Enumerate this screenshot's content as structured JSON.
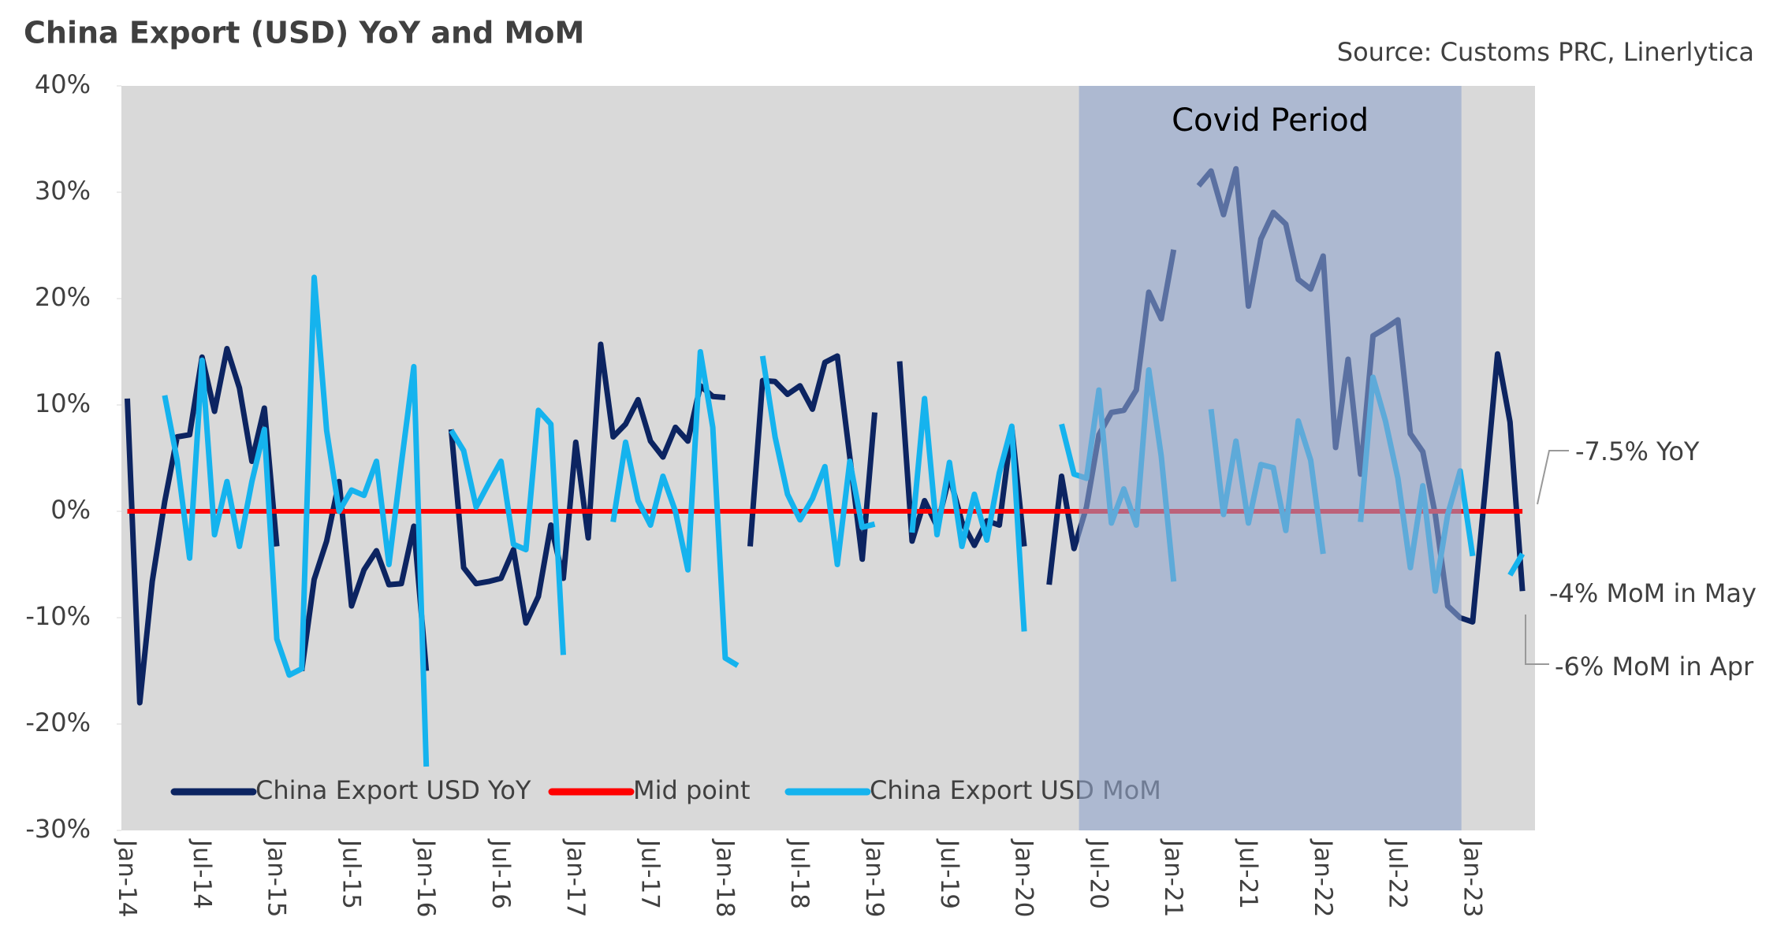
{
  "chart_data": {
    "type": "line",
    "title": "China Export (USD) YoY and MoM",
    "subtitle": "Source: Customs PRC, Linerlytica",
    "categories": [
      "Jan-14",
      null,
      null,
      null,
      null,
      null,
      "Jul-14",
      null,
      null,
      null,
      null,
      null,
      "Jan-15",
      null,
      null,
      null,
      null,
      null,
      "Jul-15",
      null,
      null,
      null,
      null,
      null,
      "Jan-16",
      null,
      null,
      null,
      null,
      null,
      "Jul-16",
      null,
      null,
      null,
      null,
      null,
      "Jan-17",
      null,
      null,
      null,
      null,
      null,
      "Jul-17",
      null,
      null,
      null,
      null,
      null,
      "Jan-18",
      null,
      null,
      null,
      null,
      null,
      "Jul-18",
      null,
      null,
      null,
      null,
      null,
      "Jan-19",
      null,
      null,
      null,
      null,
      null,
      "Jul-19",
      null,
      null,
      null,
      null,
      null,
      "Jan-20",
      null,
      null,
      null,
      null,
      null,
      "Jul-20",
      null,
      null,
      null,
      null,
      null,
      "Jan-21",
      null,
      null,
      null,
      null,
      null,
      "Jul-21",
      null,
      null,
      null,
      null,
      null,
      "Jan-22",
      null,
      null,
      null,
      null,
      null,
      "Jul-22",
      null,
      null,
      null,
      null,
      null,
      "Jan-23",
      null,
      null,
      null,
      null
    ],
    "series": [
      {
        "name": "China Export USD YoY",
        "color": "#0c2461",
        "values": [
          10.6,
          -18,
          -6.6,
          0.9,
          7,
          7.2,
          14.5,
          9.4,
          15.3,
          11.6,
          4.7,
          9.7,
          -3.3,
          null,
          -15,
          -6.4,
          -2.8,
          2.8,
          -8.9,
          -5.5,
          -3.7,
          -6.9,
          -6.8,
          -1.4,
          -15,
          null,
          7.7,
          -5.3,
          -6.8,
          -6.6,
          -6.3,
          -3.6,
          -10.5,
          -8,
          -1.3,
          -6.3,
          6.5,
          -2.5,
          15.7,
          7,
          8.2,
          10.5,
          6.6,
          5.1,
          7.9,
          6.6,
          11.8,
          10.8,
          10.7,
          null,
          -3.3,
          12.3,
          12.2,
          11,
          11.8,
          9.6,
          14,
          14.6,
          5.1,
          -4.5,
          9.3,
          null,
          14.1,
          -2.8,
          1,
          -1.4,
          3.3,
          -1,
          -3.2,
          -0.9,
          -1.3,
          7.9,
          -3.3,
          null,
          -6.9,
          3.3,
          -3.5,
          0.4,
          7.2,
          9.3,
          9.5,
          11.4,
          20.6,
          18.1,
          24.6,
          null,
          30.6,
          32,
          27.9,
          32.2,
          19.3,
          25.6,
          28.1,
          27,
          21.8,
          20.9,
          24,
          6,
          14.3,
          3.5,
          16.5,
          17.2,
          18,
          7.3,
          5.6,
          -0.3,
          -8.9,
          -10,
          -10.4,
          2,
          14.8,
          8.4,
          -7.5
        ]
      },
      {
        "name": "Mid point",
        "color": "#ff0000",
        "values": [
          0,
          0,
          0,
          0,
          0,
          0,
          0,
          0,
          0,
          0,
          0,
          0,
          0,
          0,
          0,
          0,
          0,
          0,
          0,
          0,
          0,
          0,
          0,
          0,
          0,
          0,
          0,
          0,
          0,
          0,
          0,
          0,
          0,
          0,
          0,
          0,
          0,
          0,
          0,
          0,
          0,
          0,
          0,
          0,
          0,
          0,
          0,
          0,
          0,
          0,
          0,
          0,
          0,
          0,
          0,
          0,
          0,
          0,
          0,
          0,
          0,
          0,
          0,
          0,
          0,
          0,
          0,
          0,
          0,
          0,
          0,
          0,
          0,
          0,
          0,
          0,
          0,
          0,
          0,
          0,
          0,
          0,
          0,
          0,
          0,
          0,
          0,
          0,
          0,
          0,
          0,
          0,
          0,
          0,
          0,
          0,
          0,
          0,
          0,
          0,
          0,
          0,
          0,
          0,
          0,
          0,
          0,
          0,
          0,
          0,
          0,
          0,
          0
        ]
      },
      {
        "name": "China Export USD MoM",
        "color": "#15b3ee",
        "values": [
          null,
          null,
          null,
          10.9,
          4.8,
          -4.4,
          14.2,
          -2.2,
          2.8,
          -3.3,
          2.8,
          7.7,
          -12,
          -15.4,
          -14.8,
          22,
          7.6,
          0,
          2,
          1.5,
          4.7,
          -5,
          4.5,
          13.6,
          -24,
          null,
          7.6,
          5.7,
          0.4,
          2.6,
          4.7,
          -3.1,
          -3.6,
          9.5,
          8.2,
          -13.5,
          null,
          null,
          null,
          -1,
          6.5,
          1,
          -1.3,
          3.3,
          0,
          -5.5,
          15,
          7.9,
          -13.8,
          -14.5,
          null,
          14.6,
          7,
          1.6,
          -0.8,
          1.2,
          4.2,
          -5,
          4.7,
          -1.5,
          -1.2,
          null,
          null,
          -2,
          10.6,
          -2.2,
          4.6,
          -3.3,
          1.6,
          -2.7,
          3.6,
          8,
          -11.3,
          null,
          null,
          8.2,
          3.5,
          3.1,
          11.4,
          -1.1,
          2.1,
          -1.3,
          13.3,
          5.2,
          -6.6,
          null,
          null,
          9.6,
          -0.3,
          6.6,
          -1.1,
          4.4,
          4.1,
          -1.8,
          8.5,
          4.8,
          -4,
          null,
          null,
          -1,
          12.6,
          8.5,
          3.1,
          -5.3,
          2.4,
          -7.5,
          -0.3,
          3.8,
          -4.2,
          null,
          null,
          -6,
          -4
        ]
      }
    ],
    "ylim": [
      -30,
      40
    ],
    "yticks": [
      {
        "value": -30,
        "label": "-30%"
      },
      {
        "value": -20,
        "label": "-20%"
      },
      {
        "value": -10,
        "label": "-10%"
      },
      {
        "value": 0,
        "label": "0%"
      },
      {
        "value": 10,
        "label": "10%"
      },
      {
        "value": 20,
        "label": "20%"
      },
      {
        "value": 30,
        "label": "30%"
      },
      {
        "value": 40,
        "label": "40%"
      }
    ],
    "shaded_region": {
      "label": "Covid Period",
      "span": [
        76.4,
        107.1
      ],
      "color": "#8fa3cc"
    },
    "annotations": [
      "-7.5% YoY",
      "-4% MoM in May",
      "-6% MoM in Apr"
    ],
    "legend": "bottom-left"
  }
}
